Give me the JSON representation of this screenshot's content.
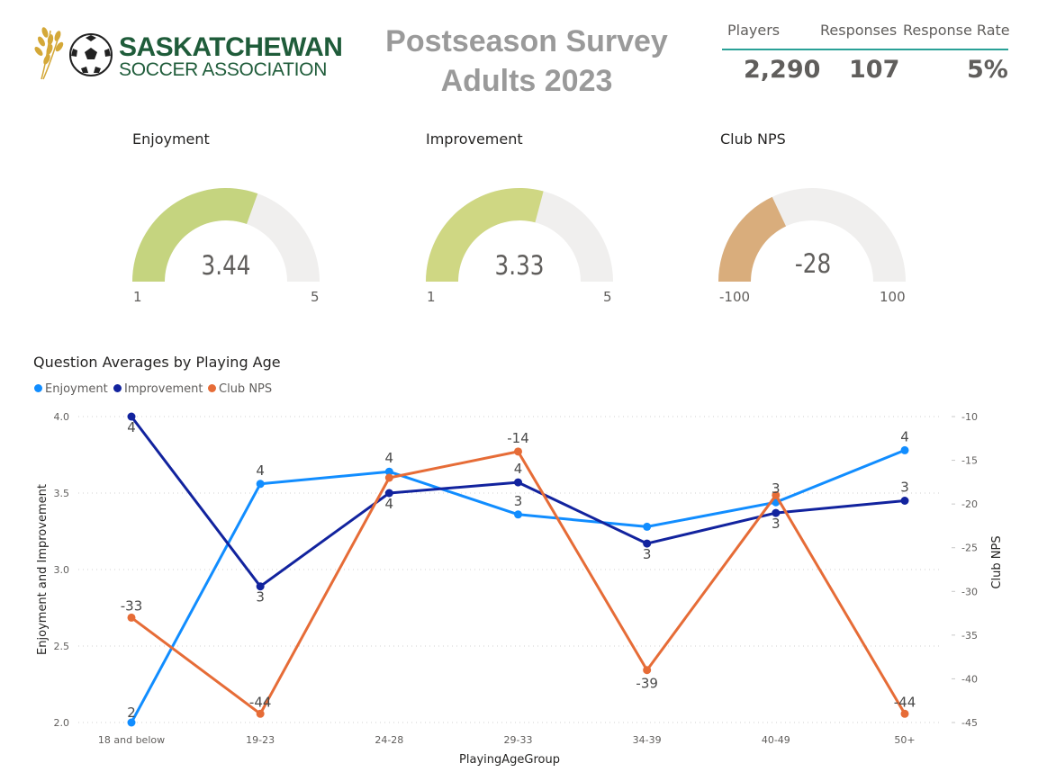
{
  "logo": {
    "line1": "SASKATCHEWAN",
    "line2": "SOCCER ASSOCIATION"
  },
  "title_line1": "Postseason Survey",
  "title_line2": "Adults 2023",
  "kpis": {
    "players_label": "Players",
    "players_value": "2,290",
    "responses_label": "Responses",
    "responses_value": "107",
    "rate_label": "Response Rate",
    "rate_value": "5%"
  },
  "gauges": [
    {
      "title": "Enjoyment",
      "value": 3.44,
      "value_label": "3.44",
      "min": 1,
      "max": 5,
      "min_label": "1",
      "max_label": "5",
      "color": "#c5d47f"
    },
    {
      "title": "Improvement",
      "value": 3.33,
      "value_label": "3.33",
      "min": 1,
      "max": 5,
      "min_label": "1",
      "max_label": "5",
      "color": "#cfd783"
    },
    {
      "title": "Club NPS",
      "value": -28,
      "value_label": "-28",
      "min": -100,
      "max": 100,
      "min_label": "-100",
      "max_label": "100",
      "color": "#d9ad7c"
    }
  ],
  "gauge_track_color": "#f0efee",
  "chart_data": {
    "type": "line",
    "title": "Question Averages by Playing Age",
    "xlabel": "PlayingAgeGroup",
    "ylabel_left": "Enjoyment and Improvement",
    "ylabel_right": "Club NPS",
    "categories": [
      "18 and below",
      "19-23",
      "24-28",
      "29-33",
      "34-39",
      "40-49",
      "50+"
    ],
    "ylim_left": [
      2.0,
      4.0
    ],
    "yticks_left": [
      "2.0",
      "2.5",
      "3.0",
      "3.5",
      "4.0"
    ],
    "ylim_right": [
      -45,
      -10
    ],
    "yticks_right": [
      "-45",
      "-40",
      "-35",
      "-30",
      "-25",
      "-20",
      "-15",
      "-10"
    ],
    "grid": true,
    "legend_position": "top-left",
    "series": [
      {
        "name": "Enjoyment",
        "axis": "left",
        "color": "#118dff",
        "values": [
          2.0,
          3.56,
          3.64,
          3.36,
          3.28,
          3.44,
          3.78
        ],
        "labels": [
          "2",
          "4",
          "4",
          "3",
          "",
          "3",
          "4"
        ]
      },
      {
        "name": "Improvement",
        "axis": "left",
        "color": "#12239e",
        "values": [
          4.0,
          2.89,
          3.5,
          3.57,
          3.17,
          3.37,
          3.45
        ],
        "labels": [
          "4",
          "3",
          "4",
          "4",
          "3",
          "3",
          "3"
        ]
      },
      {
        "name": "Club NPS",
        "axis": "right",
        "color": "#e66c37",
        "values": [
          -33,
          -44,
          -17,
          -14,
          -39,
          -19,
          -44
        ],
        "labels": [
          "-33",
          "-44",
          "",
          "-14",
          "-39",
          "",
          "-44"
        ]
      }
    ]
  }
}
